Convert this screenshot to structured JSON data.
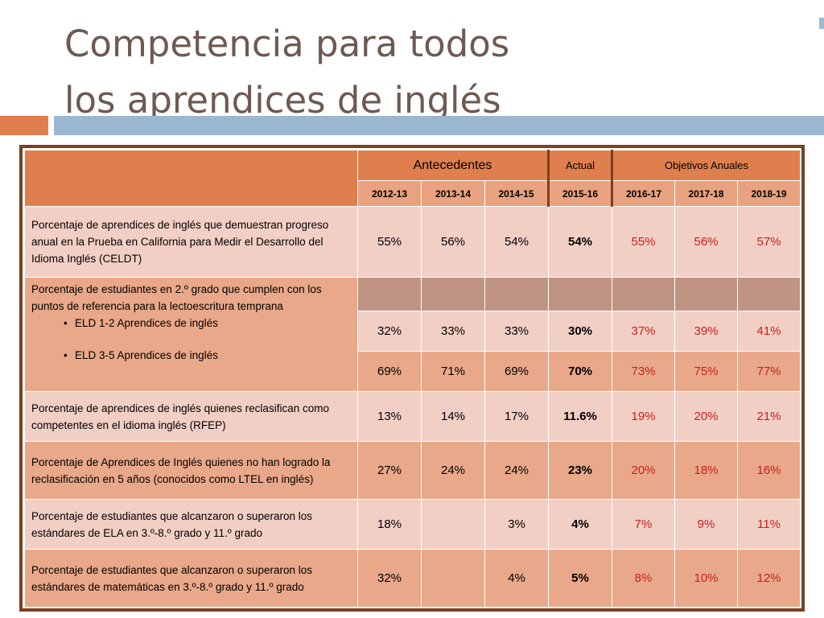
{
  "slide": {
    "title_line1": "Competencia para todos",
    "title_line2": "los aprendices de inglés"
  },
  "table": {
    "group_headers": {
      "antecedentes": "Antecedentes",
      "actual": "Actual",
      "objetivos": "Objetivos Anuales"
    },
    "years": [
      "2012-13",
      "2013-14",
      "2014-15",
      "2015-16",
      "2016-17",
      "2017-18",
      "2018-19"
    ],
    "rows": [
      {
        "description": "Porcentaje de aprendices de inglés que demuestran progreso anual en la Prueba en California para Medir el Desarrollo del Idioma Inglés (CELDT)",
        "values": [
          "55%",
          "56%",
          "54%",
          "54%",
          "55%",
          "56%",
          "57%"
        ]
      },
      {
        "description": "Porcentaje de estudiantes en  2.º grado que cumplen con los puntos de referencia para la lectoescritura temprana",
        "bullets": [
          "ELD 1-2 Aprendices de inglés",
          "ELD 3-5 Aprendices de inglés"
        ],
        "sub_values": [
          [
            "32%",
            "33%",
            "33%",
            "30%",
            "37%",
            "39%",
            "41%"
          ],
          [
            "69%",
            "71%",
            "69%",
            "70%",
            "73%",
            "75%",
            "77%"
          ]
        ]
      },
      {
        "description": "Porcentaje de aprendices de inglés quienes reclasifican como competentes en el idioma inglés (RFEP)",
        "values": [
          "13%",
          "14%",
          "17%",
          "11.6%",
          "19%",
          "20%",
          "21%"
        ]
      },
      {
        "description": "Porcentaje de Aprendices de Inglés quienes no han logrado la reclasificación en 5 años (conocidos como LTEL en inglés)",
        "values": [
          "27%",
          "24%",
          "24%",
          "23%",
          "20%",
          "18%",
          "16%"
        ]
      },
      {
        "description": "Porcentaje de estudiantes que alcanzaron o superaron los estándares de ELA en  3.º-8.º grado y 11.º grado",
        "values": [
          "18%",
          "",
          "3%",
          "4%",
          "7%",
          "9%",
          "11%"
        ]
      },
      {
        "description": "Porcentaje de estudiantes que alcanzaron o superaron los estándares de matemáticas en  3.º-8.º grado y 11.º grado",
        "values": [
          "32%",
          "",
          "4%",
          "5%",
          "8%",
          "10%",
          "12%"
        ]
      }
    ]
  }
}
